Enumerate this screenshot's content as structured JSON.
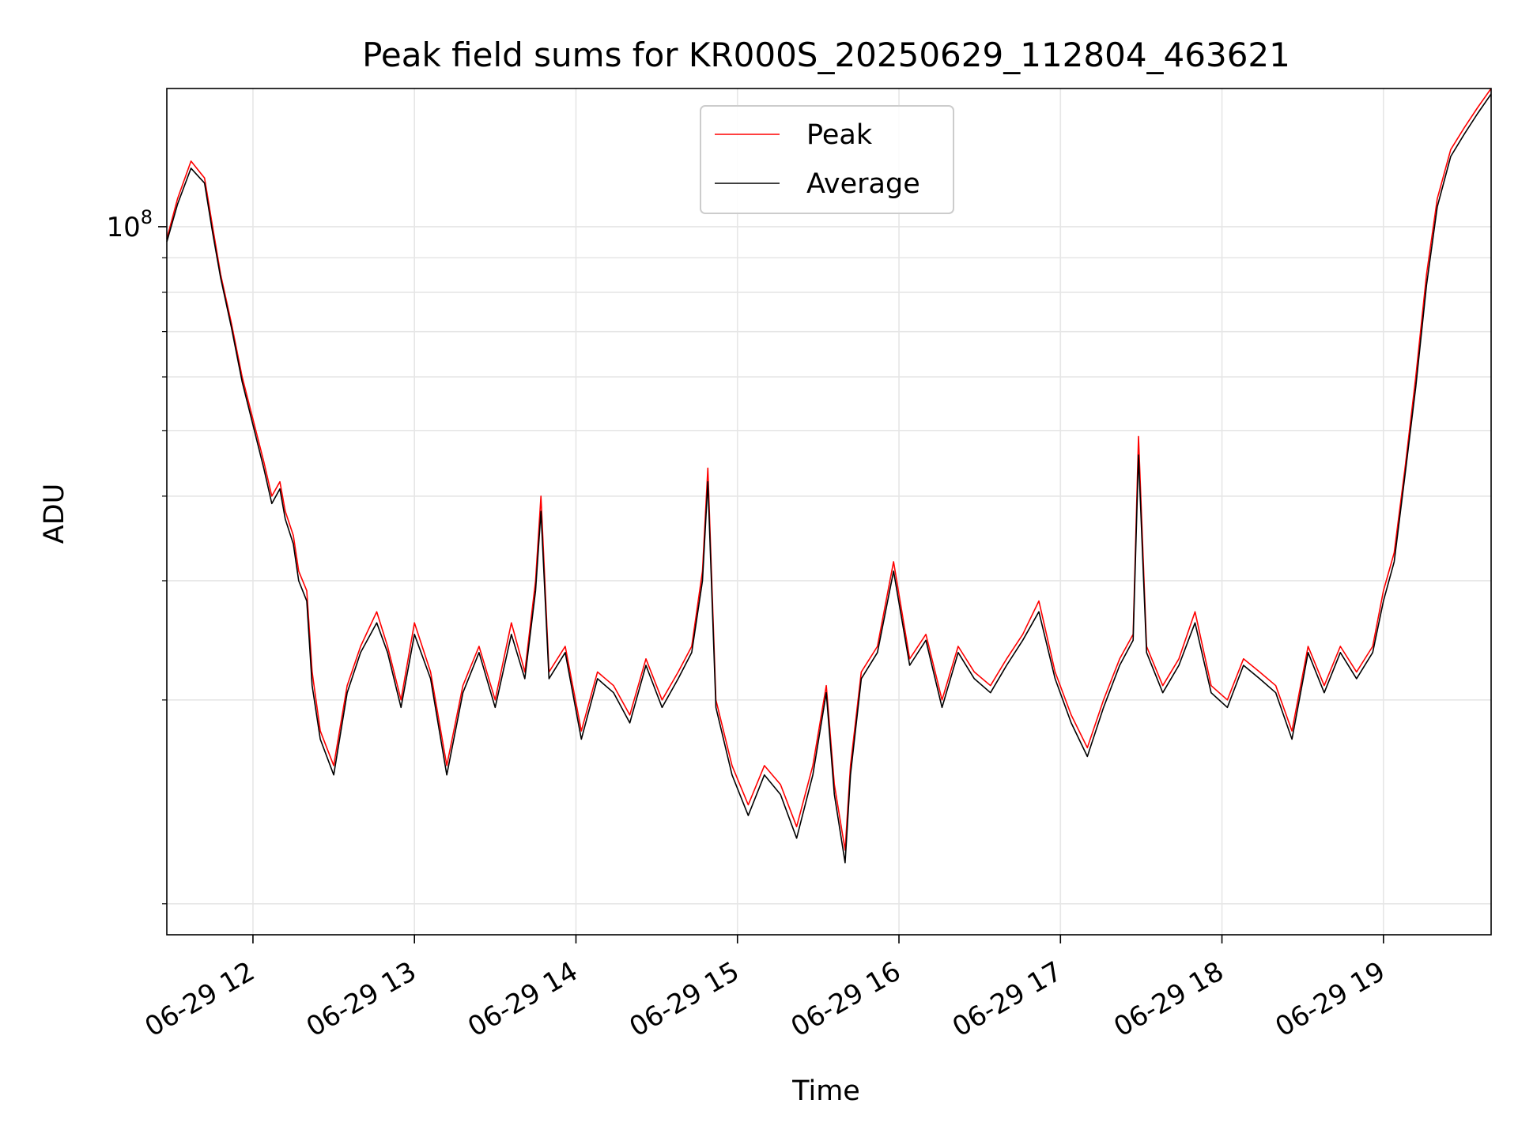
{
  "chart_data": {
    "type": "line",
    "title": "Peak field sums for KR000S_20250629_112804_463621",
    "xlabel": "Time",
    "ylabel": "ADU",
    "x_type": "datetime",
    "xlim": [
      "2025-06-29T11:28:00",
      "2025-06-29T19:40:00"
    ],
    "x_tick_values": [
      "2025-06-29T12:00:00",
      "2025-06-29T13:00:00",
      "2025-06-29T14:00:00",
      "2025-06-29T15:00:00",
      "2025-06-29T16:00:00",
      "2025-06-29T17:00:00",
      "2025-06-29T18:00:00",
      "2025-06-29T19:00:00"
    ],
    "x_tick_labels": [
      "06-29 12",
      "06-29 13",
      "06-29 14",
      "06-29 15",
      "06-29 16",
      "06-29 17",
      "06-29 18",
      "06-29 19"
    ],
    "y_scale": "log",
    "ylim": [
      9000000,
      160000000
    ],
    "y_major_tick_values": [
      100000000
    ],
    "y_major_tick_labels": [
      "10^8"
    ],
    "y_minor_tick_values": [
      10000000,
      20000000,
      30000000,
      40000000,
      50000000,
      60000000,
      70000000,
      80000000,
      90000000
    ],
    "grid": true,
    "legend_position": "top-center",
    "x": [
      "2025-06-29T11:28:00",
      "2025-06-29T11:32:00",
      "2025-06-29T11:37:00",
      "2025-06-29T11:42:00",
      "2025-06-29T11:45:00",
      "2025-06-29T11:48:00",
      "2025-06-29T11:52:00",
      "2025-06-29T11:56:00",
      "2025-06-29T12:00:00",
      "2025-06-29T12:04:00",
      "2025-06-29T12:07:00",
      "2025-06-29T12:10:00",
      "2025-06-29T12:12:00",
      "2025-06-29T12:15:00",
      "2025-06-29T12:17:00",
      "2025-06-29T12:20:00",
      "2025-06-29T12:22:00",
      "2025-06-29T12:25:00",
      "2025-06-29T12:30:00",
      "2025-06-29T12:35:00",
      "2025-06-29T12:40:00",
      "2025-06-29T12:46:00",
      "2025-06-29T12:50:00",
      "2025-06-29T12:55:00",
      "2025-06-29T13:00:00",
      "2025-06-29T13:06:00",
      "2025-06-29T13:12:00",
      "2025-06-29T13:18:00",
      "2025-06-29T13:24:00",
      "2025-06-29T13:30:00",
      "2025-06-29T13:36:00",
      "2025-06-29T13:41:00",
      "2025-06-29T13:45:00",
      "2025-06-29T13:47:00",
      "2025-06-29T13:50:00",
      "2025-06-29T13:56:00",
      "2025-06-29T14:02:00",
      "2025-06-29T14:08:00",
      "2025-06-29T14:14:00",
      "2025-06-29T14:20:00",
      "2025-06-29T14:26:00",
      "2025-06-29T14:32:00",
      "2025-06-29T14:38:00",
      "2025-06-29T14:43:00",
      "2025-06-29T14:47:00",
      "2025-06-29T14:49:00",
      "2025-06-29T14:52:00",
      "2025-06-29T14:58:00",
      "2025-06-29T15:04:00",
      "2025-06-29T15:10:00",
      "2025-06-29T15:16:00",
      "2025-06-29T15:22:00",
      "2025-06-29T15:28:00",
      "2025-06-29T15:33:00",
      "2025-06-29T15:36:00",
      "2025-06-29T15:40:00",
      "2025-06-29T15:42:00",
      "2025-06-29T15:46:00",
      "2025-06-29T15:52:00",
      "2025-06-29T15:58:00",
      "2025-06-29T16:04:00",
      "2025-06-29T16:10:00",
      "2025-06-29T16:16:00",
      "2025-06-29T16:22:00",
      "2025-06-29T16:28:00",
      "2025-06-29T16:34:00",
      "2025-06-29T16:40:00",
      "2025-06-29T16:46:00",
      "2025-06-29T16:52:00",
      "2025-06-29T16:58:00",
      "2025-06-29T17:04:00",
      "2025-06-29T17:10:00",
      "2025-06-29T17:16:00",
      "2025-06-29T17:22:00",
      "2025-06-29T17:27:00",
      "2025-06-29T17:29:00",
      "2025-06-29T17:32:00",
      "2025-06-29T17:38:00",
      "2025-06-29T17:44:00",
      "2025-06-29T17:50:00",
      "2025-06-29T17:56:00",
      "2025-06-29T18:02:00",
      "2025-06-29T18:08:00",
      "2025-06-29T18:14:00",
      "2025-06-29T18:20:00",
      "2025-06-29T18:26:00",
      "2025-06-29T18:32:00",
      "2025-06-29T18:38:00",
      "2025-06-29T18:44:00",
      "2025-06-29T18:50:00",
      "2025-06-29T18:56:00",
      "2025-06-29T19:00:00",
      "2025-06-29T19:04:00",
      "2025-06-29T19:08:00",
      "2025-06-29T19:12:00",
      "2025-06-29T19:16:00",
      "2025-06-29T19:20:00",
      "2025-06-29T19:25:00",
      "2025-06-29T19:30:00",
      "2025-06-29T19:35:00",
      "2025-06-29T19:40:00"
    ],
    "series": [
      {
        "name": "Peak",
        "color": "#ff0000",
        "values": [
          96000000,
          110000000,
          125000000,
          118000000,
          100000000,
          85000000,
          72000000,
          60000000,
          52000000,
          45000000,
          40000000,
          42000000,
          38000000,
          35000000,
          31000000,
          29000000,
          22000000,
          18000000,
          16000000,
          21000000,
          24000000,
          27000000,
          24000000,
          20000000,
          26000000,
          22000000,
          16000000,
          21000000,
          24000000,
          20000000,
          26000000,
          22000000,
          30000000,
          40000000,
          22000000,
          24000000,
          18000000,
          22000000,
          21000000,
          19000000,
          23000000,
          20000000,
          22000000,
          24000000,
          31000000,
          44000000,
          20000000,
          16000000,
          14000000,
          16000000,
          15000000,
          13000000,
          16000000,
          21000000,
          15000000,
          12000000,
          16000000,
          22000000,
          24000000,
          32000000,
          23000000,
          25000000,
          20000000,
          24000000,
          22000000,
          21000000,
          23000000,
          25000000,
          28000000,
          22000000,
          19000000,
          17000000,
          20000000,
          23000000,
          25000000,
          49000000,
          24000000,
          21000000,
          23000000,
          27000000,
          21000000,
          20000000,
          23000000,
          22000000,
          21000000,
          18000000,
          24000000,
          21000000,
          24000000,
          22000000,
          24000000,
          29000000,
          33000000,
          44000000,
          60000000,
          85000000,
          110000000,
          130000000,
          140000000,
          150000000,
          160000000
        ]
      },
      {
        "name": "Average",
        "color": "#000000",
        "values": [
          95000000,
          108000000,
          122000000,
          116000000,
          98000000,
          84000000,
          71000000,
          59000000,
          51000000,
          44000000,
          39000000,
          41000000,
          37000000,
          34000000,
          30000000,
          28000000,
          21000000,
          17500000,
          15500000,
          20500000,
          23500000,
          26000000,
          23500000,
          19500000,
          25000000,
          21500000,
          15500000,
          20500000,
          23500000,
          19500000,
          25000000,
          21500000,
          29000000,
          38000000,
          21500000,
          23500000,
          17500000,
          21500000,
          20500000,
          18500000,
          22500000,
          19500000,
          21500000,
          23500000,
          30000000,
          42000000,
          19500000,
          15500000,
          13500000,
          15500000,
          14500000,
          12500000,
          15500000,
          20500000,
          14500000,
          11500000,
          15500000,
          21500000,
          23500000,
          31000000,
          22500000,
          24500000,
          19500000,
          23500000,
          21500000,
          20500000,
          22500000,
          24500000,
          27000000,
          21500000,
          18500000,
          16500000,
          19500000,
          22500000,
          24500000,
          46000000,
          23500000,
          20500000,
          22500000,
          26000000,
          20500000,
          19500000,
          22500000,
          21500000,
          20500000,
          17500000,
          23500000,
          20500000,
          23500000,
          21500000,
          23500000,
          28000000,
          32000000,
          43000000,
          58000000,
          82000000,
          107000000,
          127000000,
          137000000,
          147000000,
          157000000
        ]
      }
    ]
  }
}
